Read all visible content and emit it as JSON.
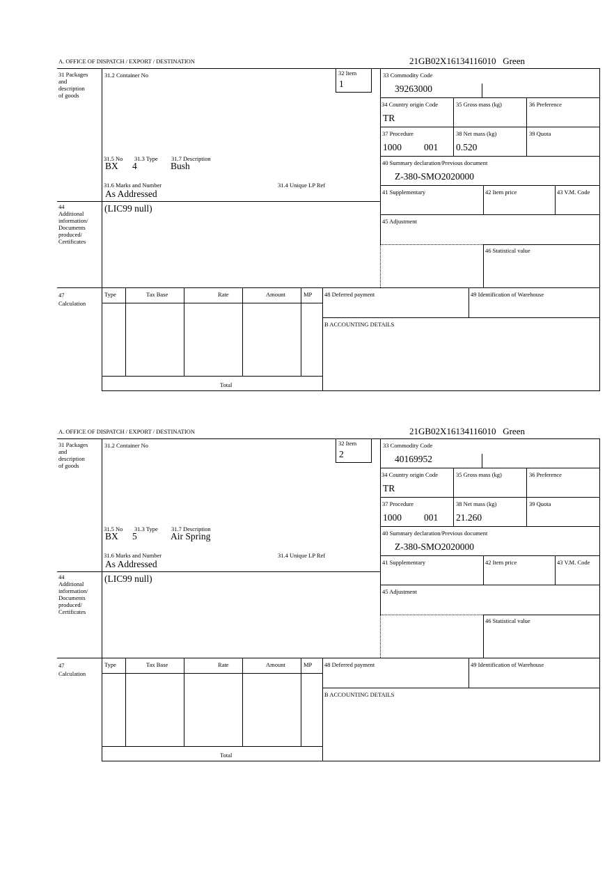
{
  "labels": {
    "office": "A.  OFFICE OF DISPATCH / EXPORT / DESTINATION",
    "packages": [
      "31 Packages",
      "and",
      "description",
      "of goods"
    ],
    "container_no": "31.2 Container No",
    "item": "32 Item",
    "no": "31.5 No",
    "type": "31.3 Type",
    "description": "31.7 Description",
    "marks": "31.6 Marks and Number",
    "unique_lp": "31.4 Unique LP Ref",
    "additional": [
      "44",
      "Additional",
      "information/",
      "Documents",
      "produced/",
      "Certificates"
    ],
    "commodity": "33 Commodity Code",
    "country": "34 Country origin Code",
    "gross": "35 Gross mass (kg)",
    "preference": "36 Preference",
    "procedure": "37 Procedure",
    "net": "38 Net mass (kg)",
    "quota": "39 Quota",
    "summary": "40 Summary declaration/Previous document",
    "supplementary": "41 Supplementary",
    "item_price": "42 Item price",
    "vm_code": "43 V.M. Code",
    "adjustment": "45 Adjustment",
    "statistical": "46 Statistical value",
    "calculation": [
      "47",
      "Calculation"
    ],
    "calc_cols": [
      "Type",
      "Tax Base",
      "Rate",
      "Amount",
      "MP"
    ],
    "total": "Total",
    "deferred": "48 Deferred payment",
    "warehouse": "49 Identification of Warehouse",
    "accounting": "B ACCOUNTING DETAILS"
  },
  "forms": [
    {
      "reference": "21GB02X16134116010",
      "status": "Green",
      "item": "1",
      "no": "BX",
      "type": "4",
      "description": "Bush",
      "marks": "As Addressed",
      "additional": "(LIC99 null)",
      "commodity_code": "39263000",
      "country": "TR",
      "procedure": "1000",
      "procedure_add": "001",
      "net_mass": "0.520",
      "summary_doc": "Z-380-SMO2020000"
    },
    {
      "reference": "21GB02X16134116010",
      "status": "Green",
      "item": "2",
      "no": "BX",
      "type": "5",
      "description": "Air Spring",
      "marks": "As Addressed",
      "additional": "(LIC99 null)",
      "commodity_code": "40169952",
      "country": "TR",
      "procedure": "1000",
      "procedure_add": "001",
      "net_mass": "21.260",
      "summary_doc": "Z-380-SMO2020000"
    }
  ]
}
